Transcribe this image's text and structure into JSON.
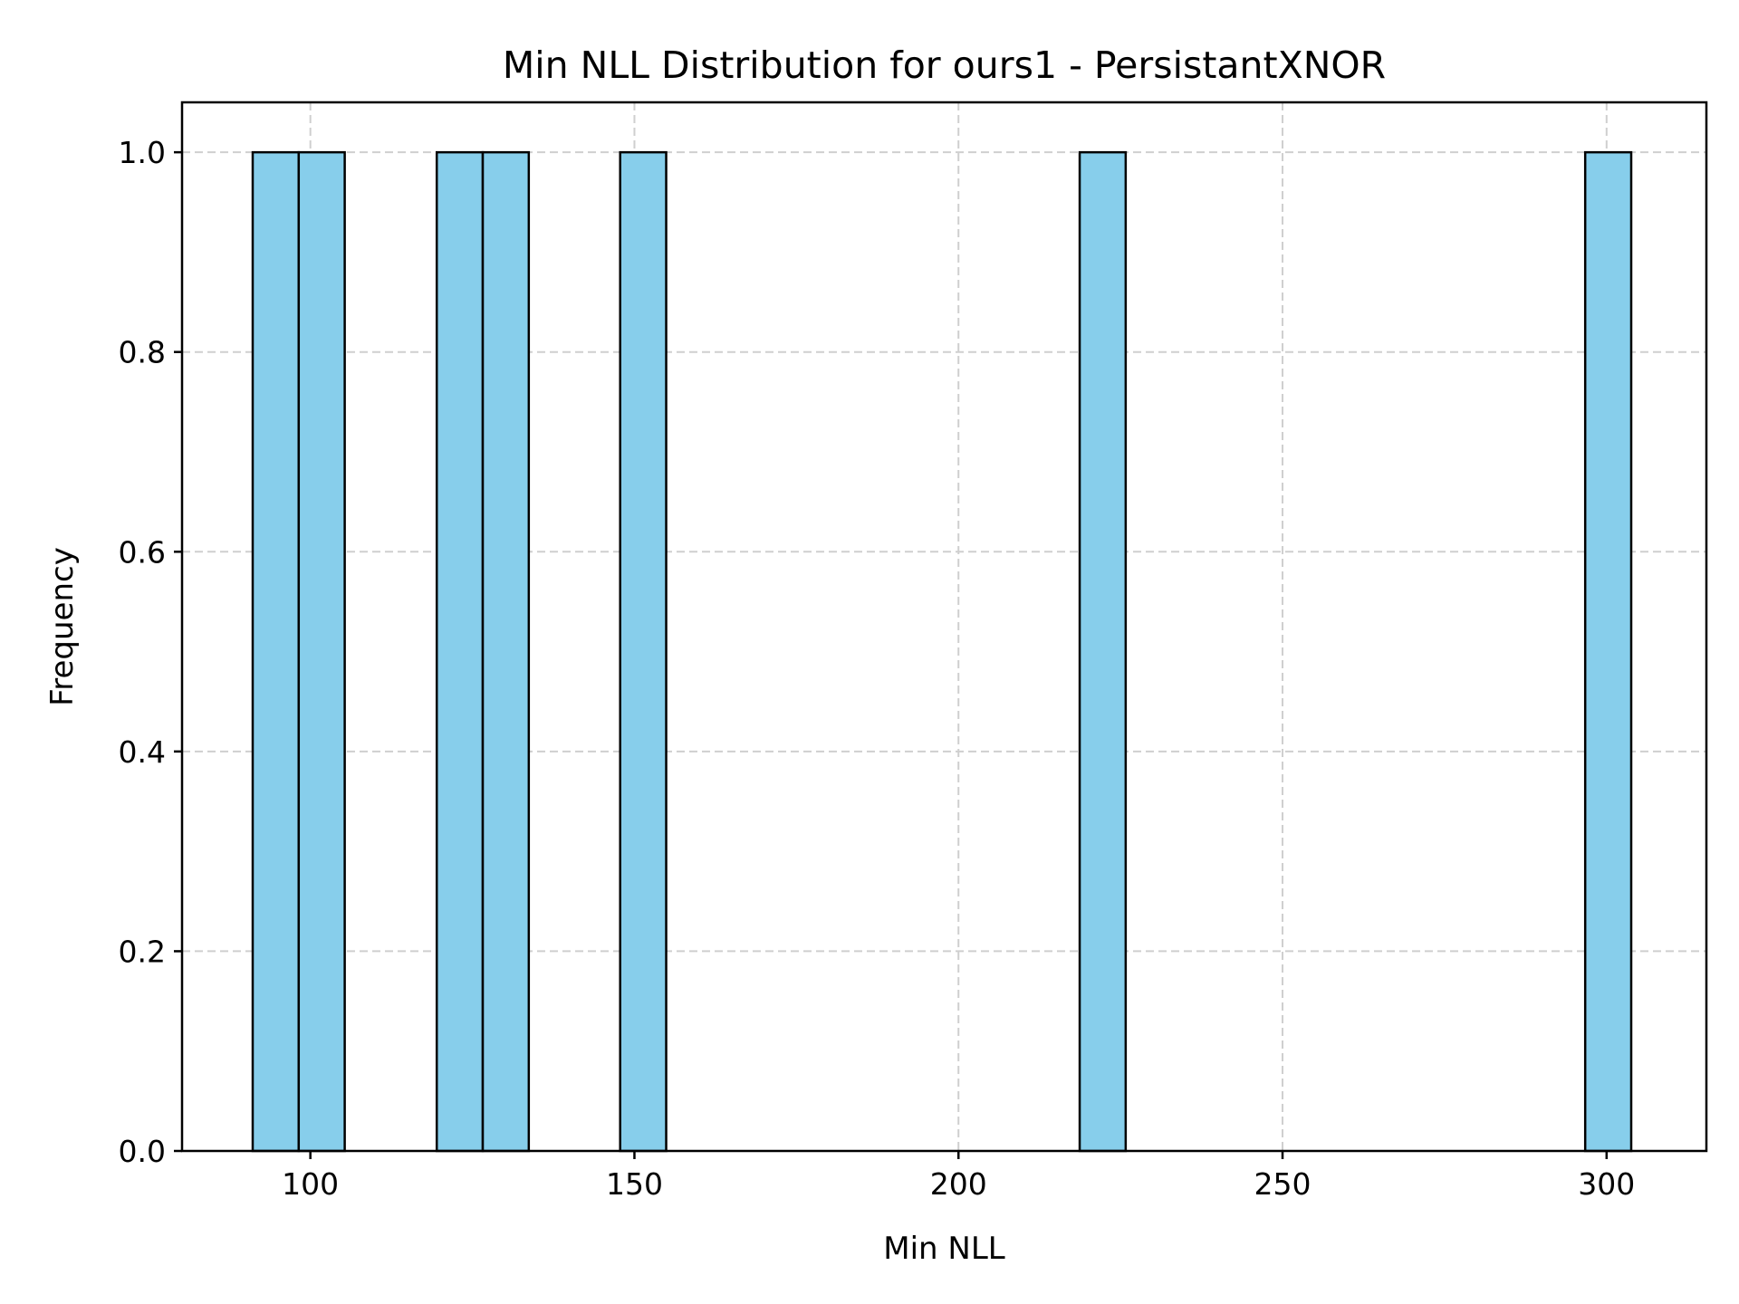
{
  "chart_data": {
    "type": "bar",
    "title": "Min NLL Distribution for ours1 - PersistantXNOR",
    "xlabel": "Min NLL",
    "ylabel": "Frequency",
    "xlim": [
      80.2,
      315.4
    ],
    "ylim": [
      0.0,
      1.05
    ],
    "grid": true,
    "legend": "none",
    "bar_color": "#87ceeb",
    "edge_color": "#000000",
    "bins": [
      {
        "start": 91.1,
        "end": 98.2,
        "value": 1.0
      },
      {
        "start": 98.2,
        "end": 105.3,
        "value": 1.0
      },
      {
        "start": 119.5,
        "end": 126.6,
        "value": 1.0
      },
      {
        "start": 126.6,
        "end": 133.7,
        "value": 1.0
      },
      {
        "start": 147.8,
        "end": 154.9,
        "value": 1.0
      },
      {
        "start": 218.7,
        "end": 225.8,
        "value": 1.0
      },
      {
        "start": 296.7,
        "end": 303.8,
        "value": 1.0
      }
    ],
    "x_ticks": [
      {
        "value": 100,
        "label": "100"
      },
      {
        "value": 150,
        "label": "150"
      },
      {
        "value": 200,
        "label": "200"
      },
      {
        "value": 250,
        "label": "250"
      },
      {
        "value": 300,
        "label": "300"
      }
    ],
    "y_ticks": [
      {
        "value": 0.0,
        "label": "0.0"
      },
      {
        "value": 0.2,
        "label": "0.2"
      },
      {
        "value": 0.4,
        "label": "0.4"
      },
      {
        "value": 0.6,
        "label": "0.6"
      },
      {
        "value": 0.8,
        "label": "0.8"
      },
      {
        "value": 1.0,
        "label": "1.0"
      }
    ]
  }
}
